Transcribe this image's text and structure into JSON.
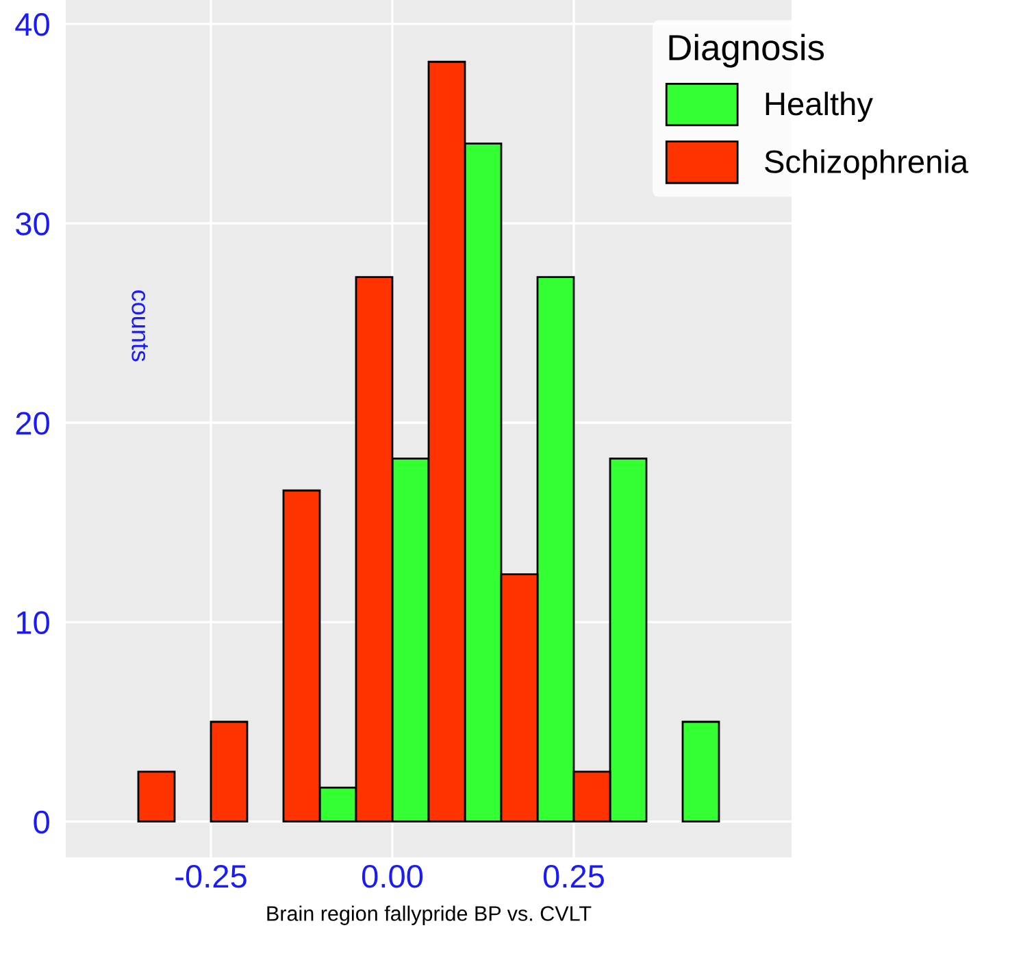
{
  "chart_data": {
    "type": "histogram",
    "xlabel": "Brain region fallypride BP vs. CVLT",
    "ylabel": "counts",
    "legend_title": "Diagnosis",
    "bins": [
      -0.4,
      -0.3,
      -0.2,
      -0.1,
      0.0,
      0.1,
      0.2,
      0.3,
      0.4,
      0.5
    ],
    "series": [
      {
        "name": "Healthy",
        "color": "#33ff33",
        "values": [
          0,
          0,
          0,
          1.7,
          18.2,
          34,
          27.3,
          18.2,
          5
        ]
      },
      {
        "name": "Schizophrenia",
        "color": "#ff3300",
        "values": [
          2.5,
          5,
          16.6,
          27.3,
          38.1,
          12.4,
          2.5,
          0,
          0
        ]
      }
    ],
    "xlim": [
      -0.45,
      0.55
    ],
    "ylim": [
      -1.8,
      41.2
    ],
    "xticks": [
      {
        "value": -0.25,
        "label": "-0.25"
      },
      {
        "value": 0,
        "label": "0.00"
      },
      {
        "value": 0.25,
        "label": "0.25"
      }
    ],
    "yticks": [
      0,
      10,
      20,
      30,
      40
    ],
    "grid": true,
    "legend": "top right"
  }
}
